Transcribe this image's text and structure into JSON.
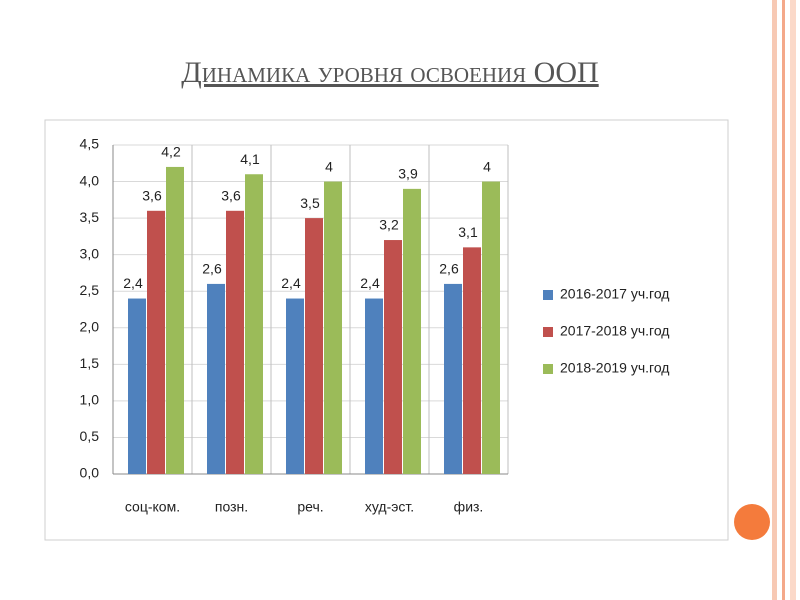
{
  "chart_data": {
    "type": "bar",
    "title": "Динамика уровня освоения ООП",
    "categories": [
      "соц-ком.",
      "позн.",
      "реч.",
      "худ-эст.",
      "физ."
    ],
    "series": [
      {
        "name": "2016-2017 уч.год",
        "color": "#4f81bd",
        "values": [
          2.4,
          2.6,
          2.4,
          2.4,
          2.6
        ],
        "value_labels": [
          "2,4",
          "2,6",
          "2,4",
          "2,4",
          "2,6"
        ]
      },
      {
        "name": "2017-2018 уч.год",
        "color": "#c0504d",
        "values": [
          3.6,
          3.6,
          3.5,
          3.2,
          3.1
        ],
        "value_labels": [
          "3,6",
          "3,6",
          "3,5",
          "3,2",
          "3,1"
        ]
      },
      {
        "name": "2018-2019 уч.год",
        "color": "#9bbb59",
        "values": [
          4.2,
          4.1,
          4,
          3.9,
          4
        ],
        "value_labels": [
          "4,2",
          "4,1",
          "4",
          "3,9",
          "4"
        ]
      }
    ],
    "ylim": [
      0,
      4.5
    ],
    "yticks": [
      {
        "value": 0,
        "label": "0,0"
      },
      {
        "value": 0.5,
        "label": "0,5"
      },
      {
        "value": 1,
        "label": "1,0"
      },
      {
        "value": 1.5,
        "label": "1,5"
      },
      {
        "value": 2,
        "label": "2,0"
      },
      {
        "value": 2.5,
        "label": "2,5"
      },
      {
        "value": 3,
        "label": "3,0"
      },
      {
        "value": 3.5,
        "label": "3,5"
      },
      {
        "value": 4,
        "label": "4,0"
      },
      {
        "value": 4.5,
        "label": "4,5"
      }
    ],
    "grid": true,
    "legend": "right"
  }
}
